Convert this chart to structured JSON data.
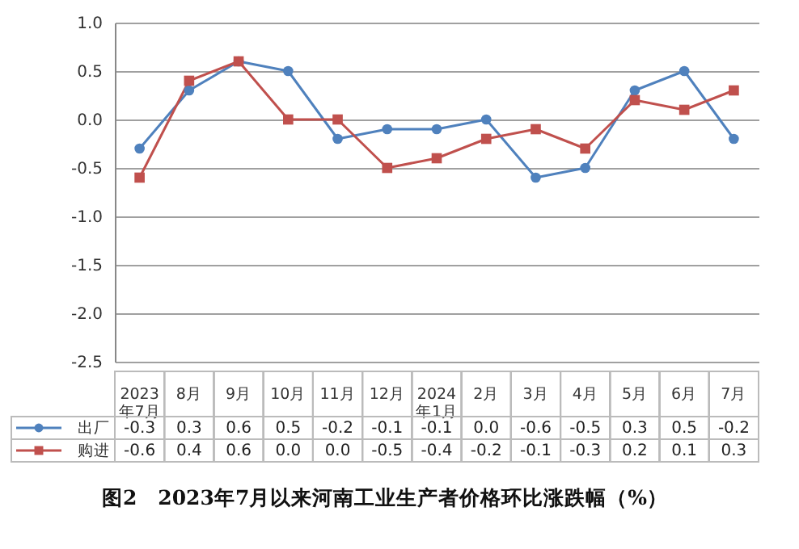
{
  "chart_data": {
    "type": "line",
    "title": "图2　2023年7月以来河南工业生产者价格环比涨跌幅（%）",
    "categories": [
      "2023年7月",
      "8月",
      "9月",
      "10月",
      "11月",
      "12月",
      "2024年1月",
      "2月",
      "3月",
      "4月",
      "5月",
      "6月",
      "7月"
    ],
    "series": [
      {
        "name": "出厂",
        "color": "#4f81bd",
        "marker": "circle",
        "values": [
          -0.3,
          0.3,
          0.6,
          0.5,
          -0.2,
          -0.1,
          -0.1,
          0.0,
          -0.6,
          -0.5,
          0.3,
          0.5,
          -0.2
        ],
        "value_labels": [
          "-0.3",
          "0.3",
          "0.6",
          "0.5",
          "-0.2",
          "-0.1",
          "-0.1",
          "0.0",
          "-0.6",
          "-0.5",
          "0.3",
          "0.5",
          "-0.2"
        ]
      },
      {
        "name": "购进",
        "color": "#c0504d",
        "marker": "square",
        "values": [
          -0.6,
          0.4,
          0.6,
          0.0,
          0.0,
          -0.5,
          -0.4,
          -0.2,
          -0.1,
          -0.3,
          0.2,
          0.1,
          0.3
        ],
        "value_labels": [
          "-0.6",
          "0.4",
          "0.6",
          "0.0",
          "0.0",
          "-0.5",
          "-0.4",
          "-0.2",
          "-0.1",
          "-0.3",
          "0.2",
          "0.1",
          "0.3"
        ]
      }
    ],
    "ylim": [
      -2.5,
      1.0
    ],
    "yticks": [
      -2.5,
      {
        "value": -2,
        "label": "-2.0"
      },
      -1.5,
      {
        "value": -1,
        "label": "-1.0"
      },
      -0.5,
      {
        "value": 0,
        "label": "0.0"
      },
      0.5,
      {
        "value": 1,
        "label": "1.0"
      }
    ],
    "grid": "y",
    "legend": "bottom left",
    "line_style": "solid"
  }
}
